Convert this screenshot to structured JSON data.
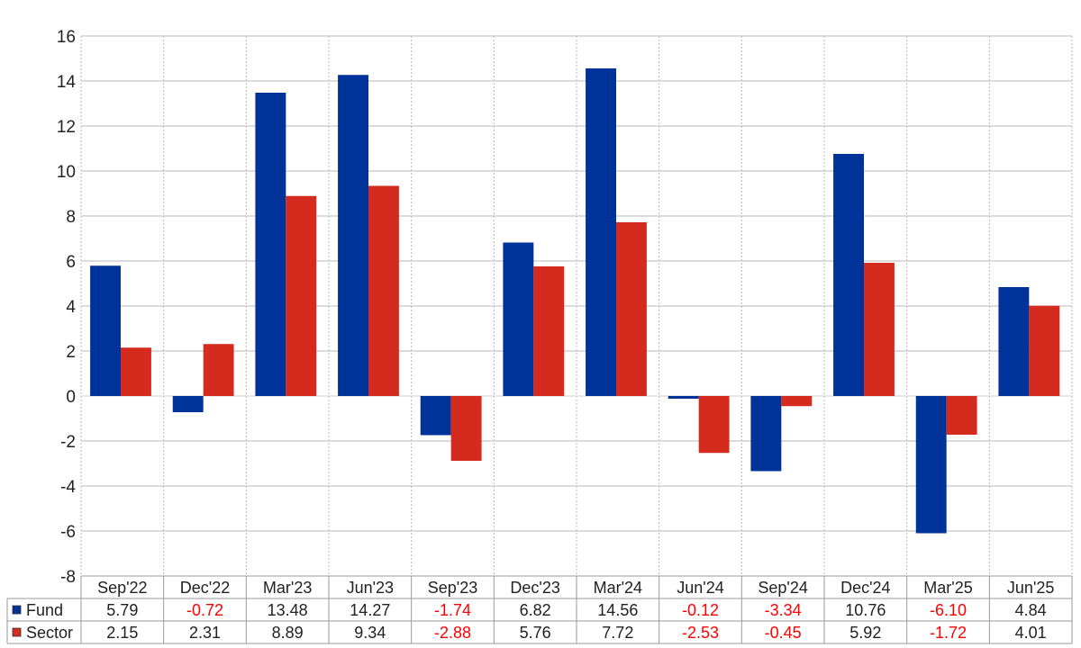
{
  "colors": {
    "fund": "#003399",
    "sector": "#d52b1e",
    "negative_text": "#ff0000",
    "text": "#222222",
    "grid": "#b9b9b9",
    "border": "#9a9a9a"
  },
  "chart_data": {
    "type": "bar",
    "title": "",
    "xlabel": "",
    "ylabel": "",
    "ylim": [
      -8,
      16
    ],
    "yticks": [
      16,
      14,
      12,
      10,
      8,
      6,
      4,
      2,
      0,
      -2,
      -4,
      -6,
      -8
    ],
    "ytick_labels": [
      "16",
      "14",
      "12",
      "10",
      "8",
      "6",
      "4",
      "2",
      "0",
      "-2",
      "-4",
      "-6",
      "-8"
    ],
    "grid": true,
    "legend": "data-table-left",
    "categories": [
      "Sep'22",
      "Dec'22",
      "Mar'23",
      "Jun'23",
      "Sep'23",
      "Dec'23",
      "Mar'24",
      "Jun'24",
      "Sep'24",
      "Dec'24",
      "Mar'25",
      "Jun'25"
    ],
    "series": [
      {
        "name": "Fund",
        "color": "#003399",
        "values": [
          5.79,
          -0.72,
          13.48,
          14.27,
          -1.74,
          6.82,
          14.56,
          -0.12,
          -3.34,
          10.76,
          -6.1,
          4.84
        ],
        "labels": [
          "5.79",
          "-0.72",
          "13.48",
          "14.27",
          "-1.74",
          "6.82",
          "14.56",
          "-0.12",
          "-3.34",
          "10.76",
          "-6.10",
          "4.84"
        ]
      },
      {
        "name": "Sector",
        "color": "#d52b1e",
        "values": [
          2.15,
          2.31,
          8.89,
          9.34,
          -2.88,
          5.76,
          7.72,
          -2.53,
          -0.45,
          5.92,
          -1.72,
          4.01
        ],
        "labels": [
          "2.15",
          "2.31",
          "8.89",
          "9.34",
          "-2.88",
          "5.76",
          "7.72",
          "-2.53",
          "-0.45",
          "5.92",
          "-1.72",
          "4.01"
        ]
      }
    ]
  }
}
